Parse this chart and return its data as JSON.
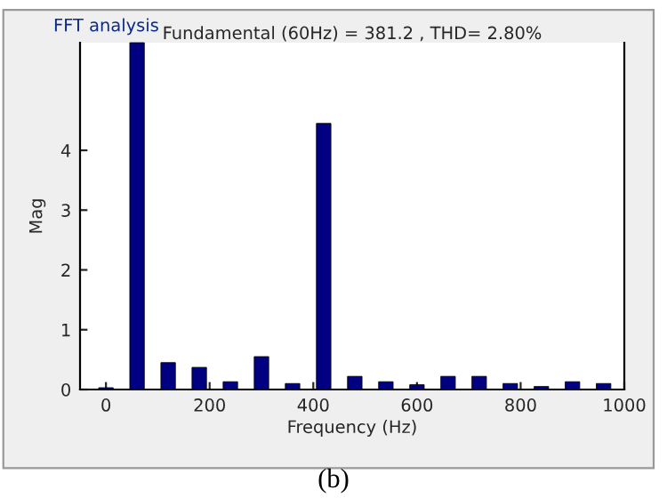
{
  "chart_data": {
    "type": "bar",
    "title": "Fundamental (60Hz) = 381.2 , THD= 2.80%",
    "xlabel": "Frequency (Hz)",
    "ylabel": "Mag",
    "x": [
      0,
      60,
      120,
      180,
      240,
      300,
      360,
      420,
      480,
      540,
      600,
      660,
      720,
      780,
      840,
      900,
      960
    ],
    "series": [
      {
        "color": "#000080",
        "values": [
          0.03,
          5.8,
          0.45,
          0.37,
          0.13,
          0.55,
          0.1,
          4.45,
          0.22,
          0.13,
          0.08,
          0.22,
          0.22,
          0.1,
          0.05,
          0.13,
          0.1
        ]
      }
    ],
    "xlim": [
      -50,
      1000
    ],
    "xticks": [
      0,
      200,
      400,
      600,
      800,
      1000
    ],
    "ylim": [
      0,
      5.8
    ],
    "yticks": [
      0,
      1,
      2,
      3,
      4
    ],
    "grid": false,
    "annotations": [
      "FFT analysis",
      "(b)"
    ]
  }
}
